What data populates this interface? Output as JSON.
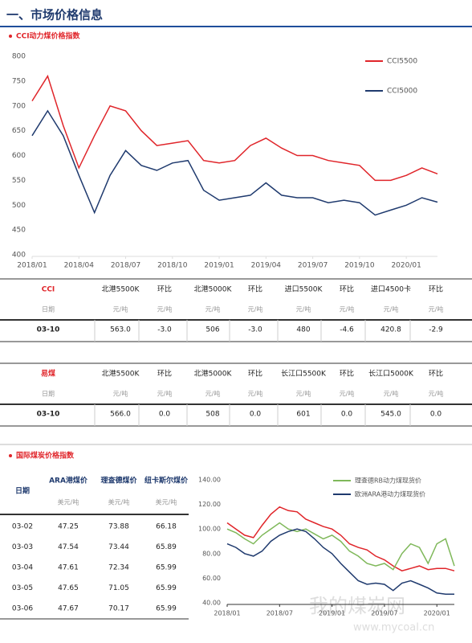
{
  "header": {
    "title": "一、市场价格信息"
  },
  "sections": [
    "CCI动力煤价格指数",
    "国际煤炭价格指数"
  ],
  "chart_data": [
    {
      "type": "line",
      "x": [
        "2018/01",
        "2018/02",
        "2018/03",
        "2018/04",
        "2018/05",
        "2018/06",
        "2018/07",
        "2018/08",
        "2018/09",
        "2018/10",
        "2018/11",
        "2018/12",
        "2019/01",
        "2019/02",
        "2019/03",
        "2019/04",
        "2019/05",
        "2019/06",
        "2019/07",
        "2019/08",
        "2019/09",
        "2019/10",
        "2019/11",
        "2019/12",
        "2020/01",
        "2020/02",
        "2020/03"
      ],
      "xticks": [
        "2018/01",
        "2018/04",
        "2018/07",
        "2018/10",
        "2019/01",
        "2019/04",
        "2019/07",
        "2019/10",
        "2020/01"
      ],
      "ylim": [
        400,
        800
      ],
      "yticks": [
        400,
        450,
        500,
        550,
        600,
        650,
        700,
        750,
        800
      ],
      "grid": false,
      "legend": "upper right",
      "series": [
        {
          "name": "CCI5500",
          "color": "#e0252a",
          "values": [
            710,
            760,
            660,
            575,
            640,
            700,
            690,
            650,
            620,
            625,
            630,
            590,
            585,
            590,
            620,
            635,
            615,
            600,
            600,
            590,
            585,
            580,
            550,
            550,
            560,
            575,
            563
          ]
        },
        {
          "name": "CCI5000",
          "color": "#1f3a6e",
          "values": [
            640,
            690,
            640,
            560,
            485,
            560,
            610,
            580,
            570,
            585,
            590,
            530,
            510,
            515,
            520,
            545,
            520,
            515,
            515,
            505,
            510,
            505,
            480,
            490,
            500,
            515,
            506
          ]
        }
      ]
    },
    {
      "type": "line",
      "x": [
        "2018/01",
        "2018/02",
        "2018/03",
        "2018/04",
        "2018/05",
        "2018/06",
        "2018/07",
        "2018/08",
        "2018/09",
        "2018/10",
        "2018/11",
        "2018/12",
        "2019/01",
        "2019/02",
        "2019/03",
        "2019/04",
        "2019/05",
        "2019/06",
        "2019/07",
        "2019/08",
        "2019/09",
        "2019/10",
        "2019/11",
        "2019/12",
        "2020/01",
        "2020/02",
        "2020/03"
      ],
      "xticks": [
        "2018/01",
        "2018/07",
        "2019/01",
        "2019/07",
        "2020/01"
      ],
      "ylim": [
        40,
        140
      ],
      "yticks": [
        {
          "value": 40,
          "label": "40.00"
        },
        {
          "value": 60,
          "label": "60.00"
        },
        {
          "value": 80,
          "label": "80.00"
        },
        {
          "value": 100,
          "label": "100.00"
        },
        {
          "value": 120,
          "label": "120.00"
        },
        {
          "value": 140,
          "label": "140.00"
        }
      ],
      "grid": false,
      "legend": "upper right",
      "series": [
        {
          "color": "#e0252a",
          "values": [
            105,
            100,
            95,
            93,
            103,
            112,
            118,
            115,
            114,
            108,
            105,
            102,
            100,
            95,
            88,
            85,
            83,
            78,
            75,
            70,
            66,
            68,
            70,
            67,
            68,
            68,
            66
          ]
        },
        {
          "name": "理查德RB动力煤现货价",
          "color": "#7fb85a",
          "values": [
            100,
            97,
            92,
            88,
            95,
            100,
            105,
            100,
            98,
            100,
            96,
            92,
            95,
            90,
            82,
            78,
            72,
            70,
            72,
            67,
            80,
            88,
            85,
            72,
            88,
            92,
            70
          ]
        },
        {
          "name": "欧洲ARA港动力煤现货价",
          "color": "#1f3a6e",
          "values": [
            88,
            85,
            80,
            78,
            82,
            90,
            95,
            98,
            100,
            98,
            92,
            85,
            80,
            72,
            65,
            58,
            55,
            56,
            55,
            50,
            56,
            58,
            55,
            52,
            48,
            47,
            47
          ]
        }
      ]
    }
  ],
  "tables": [
    {
      "header": [
        "CCI",
        "北港5500K",
        "环比",
        "北港5000K",
        "环比",
        "进口5500K",
        "环比",
        "进口4500卡",
        "环比"
      ],
      "units": [
        "日期",
        "元/吨",
        "元/吨",
        "元/吨",
        "元/吨",
        "元/吨",
        "元/吨",
        "元/吨",
        "元/吨"
      ],
      "rows": [
        [
          "03-10",
          "563.0",
          "-3.0",
          "506",
          "-3.0",
          "480",
          "-4.6",
          "420.8",
          "-2.9"
        ]
      ]
    },
    {
      "header": [
        "易煤",
        "北港5500K",
        "环比",
        "北港5000K",
        "环比",
        "长江口5500K",
        "环比",
        "长江口5000K",
        "环比"
      ],
      "units": [
        "日期",
        "元/吨",
        "元/吨",
        "元/吨",
        "元/吨",
        "元/吨",
        "元/吨",
        "元/吨",
        "元/吨"
      ],
      "rows": [
        [
          "03-10",
          "566.0",
          "0.0",
          "508",
          "0.0",
          "601",
          "0.0",
          "545.0",
          "0.0"
        ]
      ]
    },
    {
      "header": [
        "日期",
        "ARA港煤价",
        "理查德煤价",
        "纽卡斯尔煤价"
      ],
      "units": [
        "美元/吨",
        "美元/吨",
        "美元/吨"
      ],
      "rows": [
        [
          "03-02",
          "47.25",
          "73.88",
          "66.18"
        ],
        [
          "03-03",
          "47.54",
          "73.44",
          "65.89"
        ],
        [
          "03-04",
          "47.61",
          "72.34",
          "65.99"
        ],
        [
          "03-05",
          "47.65",
          "71.05",
          "65.99"
        ],
        [
          "03-06",
          "47.67",
          "70.17",
          "65.99"
        ]
      ]
    }
  ],
  "watermark": {
    "name": "我的煤炭网",
    "url": "www.mycoal.cn"
  }
}
